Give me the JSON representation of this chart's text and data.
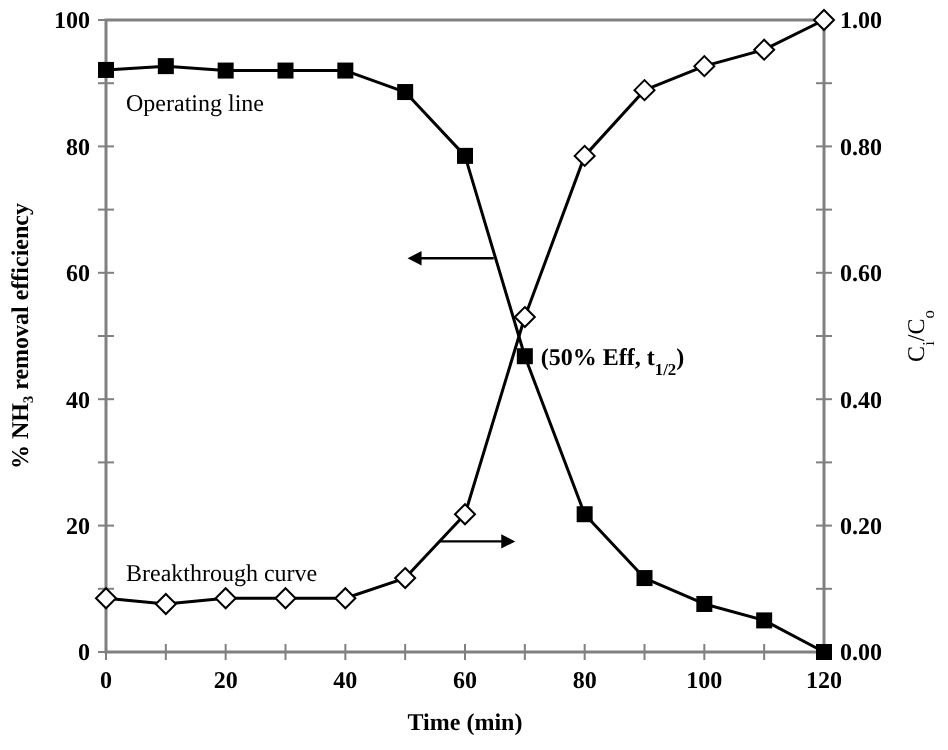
{
  "chart_data": {
    "type": "line",
    "xlabel": "Time (min)",
    "ylabel": "% NH₃ removal efficiency",
    "y2label": "C$_{i}$/C$_{o}$",
    "x": [
      0,
      10,
      20,
      30,
      40,
      50,
      60,
      70,
      80,
      90,
      100,
      110,
      120
    ],
    "series": [
      {
        "color": "#000000",
        "marker": "square",
        "values": [
          92.1,
          92.7,
          92,
          92,
          92,
          88.6,
          78.5,
          46.8,
          21.8,
          11.7,
          7.6,
          5,
          0
        ]
      },
      {
        "color": "#000000",
        "marker": "diamond",
        "axis": "y2",
        "values": [
          0.085,
          0.076,
          0.085,
          0.085,
          0.085,
          0.117,
          0.218,
          0.53,
          0.785,
          0.889,
          0.927,
          0.953,
          1.0
        ]
      }
    ],
    "xlim": [
      0,
      120
    ],
    "xticks": [
      0,
      {
        "value": 10,
        "label": null
      },
      20,
      {
        "value": 30,
        "label": null
      },
      40,
      {
        "value": 50,
        "label": null
      },
      60,
      {
        "value": 70,
        "label": null
      },
      80,
      {
        "value": 90,
        "label": null
      },
      100,
      {
        "value": 110,
        "label": null
      },
      120
    ],
    "ylim": [
      0,
      100
    ],
    "yticks": [
      0,
      {
        "value": 10,
        "label": null
      },
      20,
      {
        "value": 30,
        "label": null
      },
      40,
      {
        "value": 50,
        "label": null
      },
      60,
      {
        "value": 70,
        "label": null
      },
      80,
      {
        "value": 90,
        "label": null
      },
      100
    ],
    "y2lim": [
      0,
      1
    ],
    "y2ticks": [
      {
        "value": 0,
        "label": "0.00"
      },
      {
        "value": 0.1,
        "label": null
      },
      {
        "value": 0.2,
        "label": "0.20"
      },
      {
        "value": 0.3,
        "label": null
      },
      {
        "value": 0.4,
        "label": "0.40"
      },
      {
        "value": 0.5,
        "label": null
      },
      {
        "value": 0.6,
        "label": "0.60"
      },
      {
        "value": 0.7,
        "label": null
      },
      {
        "value": 0.8,
        "label": "0.80"
      },
      {
        "value": 0.9,
        "label": null
      },
      {
        "value": 1,
        "label": "1.00"
      }
    ],
    "annotations": [
      "Operating line",
      "Breakthrough curve",
      {
        "text": "(50% Eff, t$_{1/2}$)",
        "x": 70,
        "y": 46.8
      }
    ],
    "grid": false,
    "line_style": "solid"
  }
}
